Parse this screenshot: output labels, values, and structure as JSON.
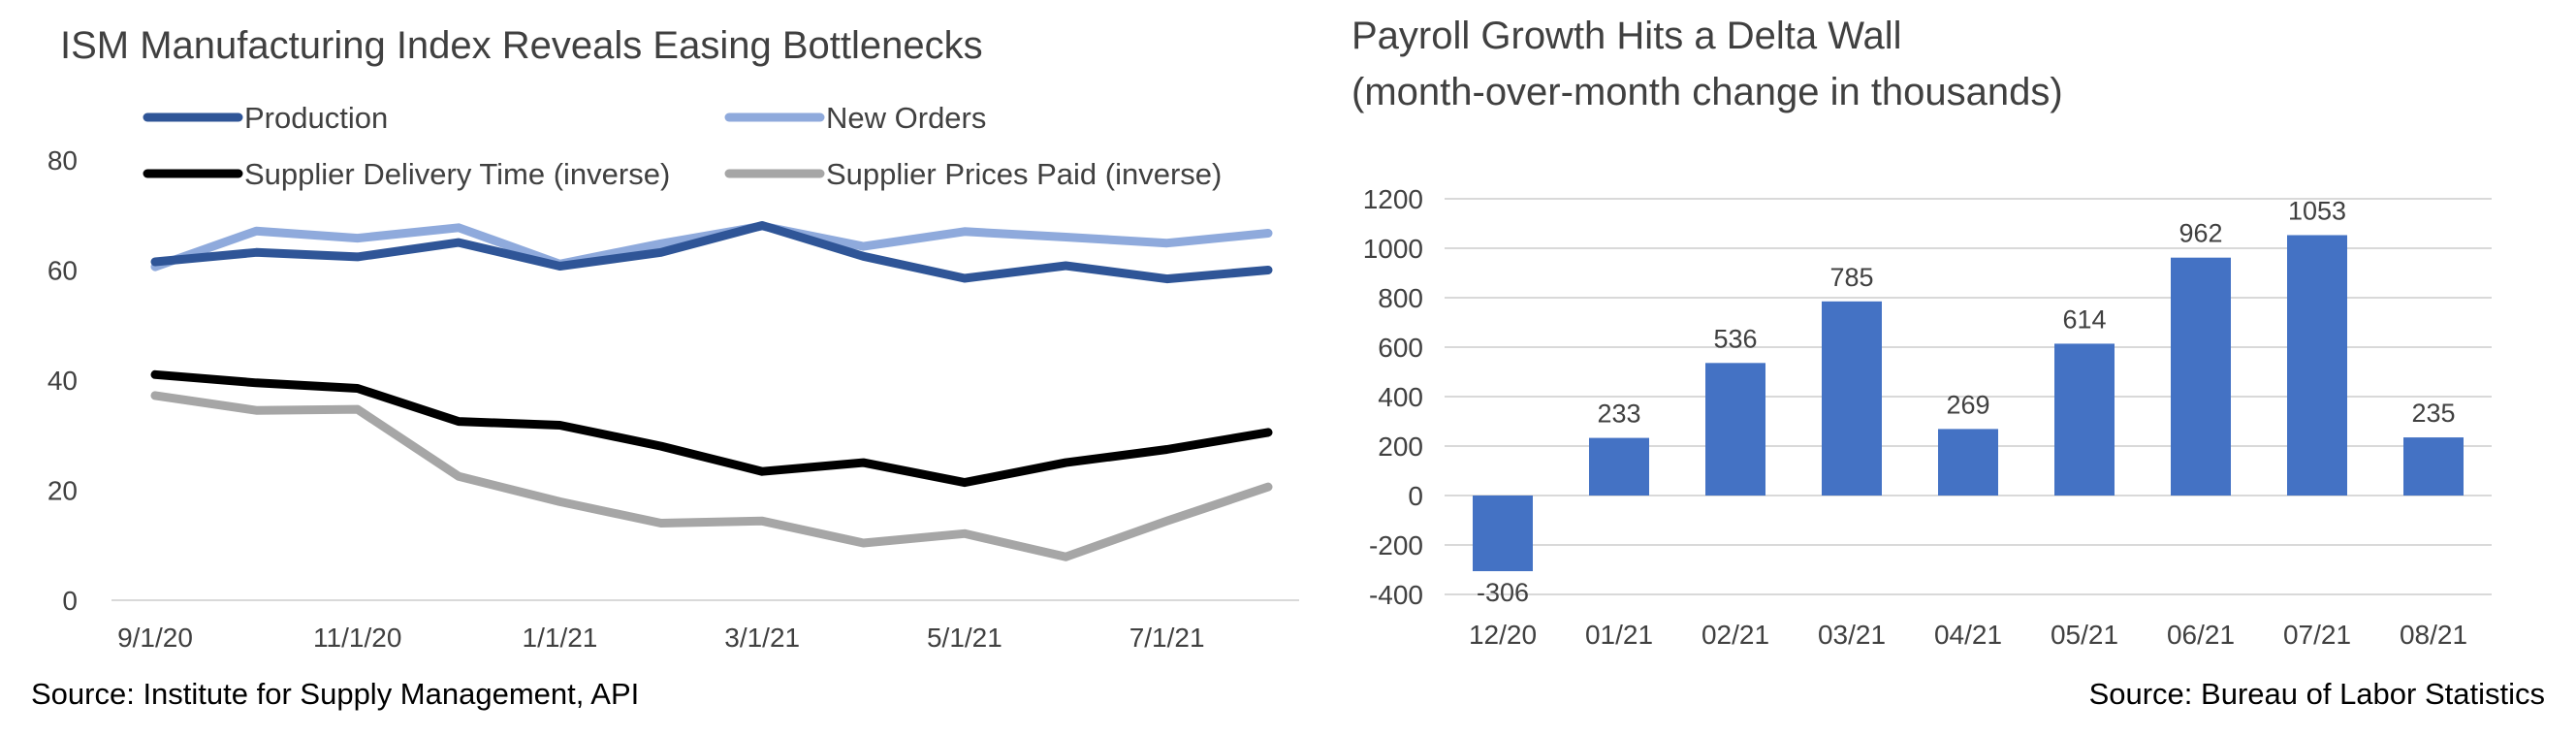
{
  "chart_data": [
    {
      "type": "line",
      "title": "ISM Manufacturing Index Reveals Easing Bottlenecks",
      "source": "Source: Institute for Supply Management, API",
      "x": [
        "9/1/20",
        "10/1/20",
        "11/1/20",
        "12/1/20",
        "1/1/21",
        "2/1/21",
        "3/1/21",
        "4/1/21",
        "5/1/21",
        "6/1/21",
        "7/1/21",
        "8/1/21"
      ],
      "x_tick_labels": [
        "9/1/20",
        "11/1/20",
        "1/1/21",
        "3/1/21",
        "5/1/21",
        "7/1/21"
      ],
      "ylim": [
        0,
        80
      ],
      "y_ticks": [
        0,
        20,
        40,
        60,
        80
      ],
      "grid": false,
      "legend_position": "top",
      "series": [
        {
          "name": "Production",
          "color": "#2f5597",
          "values": [
            61.5,
            63.2,
            62.4,
            65.0,
            60.7,
            63.2,
            68.1,
            62.5,
            58.5,
            60.8,
            58.4,
            60.0
          ]
        },
        {
          "name": "New Orders",
          "color": "#8faadc",
          "values": [
            60.6,
            67.1,
            65.8,
            67.7,
            61.1,
            64.8,
            68.0,
            64.3,
            67.0,
            66.0,
            64.9,
            66.7
          ]
        },
        {
          "name": "Supplier Delivery Time (inverse)",
          "color": "#000000",
          "values": [
            41.0,
            39.5,
            38.5,
            32.5,
            31.8,
            28.0,
            23.4,
            25.0,
            21.4,
            25.0,
            27.4,
            30.5
          ]
        },
        {
          "name": "Supplier Prices Paid (inverse)",
          "color": "#a6a6a6",
          "values": [
            37.2,
            34.5,
            34.7,
            22.5,
            17.9,
            14.0,
            14.4,
            10.4,
            12.1,
            7.9,
            14.4,
            20.6
          ]
        }
      ]
    },
    {
      "type": "bar",
      "title_lines": [
        "Payroll Growth Hits a Delta Wall",
        "(month-over-month change in thousands)"
      ],
      "source": "Source: Bureau of Labor Statistics",
      "categories": [
        "12/20",
        "01/21",
        "02/21",
        "03/21",
        "04/21",
        "05/21",
        "06/21",
        "07/21",
        "08/21"
      ],
      "values": [
        -306,
        233,
        536,
        785,
        269,
        614,
        962,
        1053,
        235
      ],
      "ylim": [
        -400,
        1200
      ],
      "y_ticks": [
        -400,
        -200,
        0,
        200,
        400,
        600,
        800,
        1000,
        1200
      ],
      "grid": true,
      "bar_color": "#4472c4"
    }
  ]
}
